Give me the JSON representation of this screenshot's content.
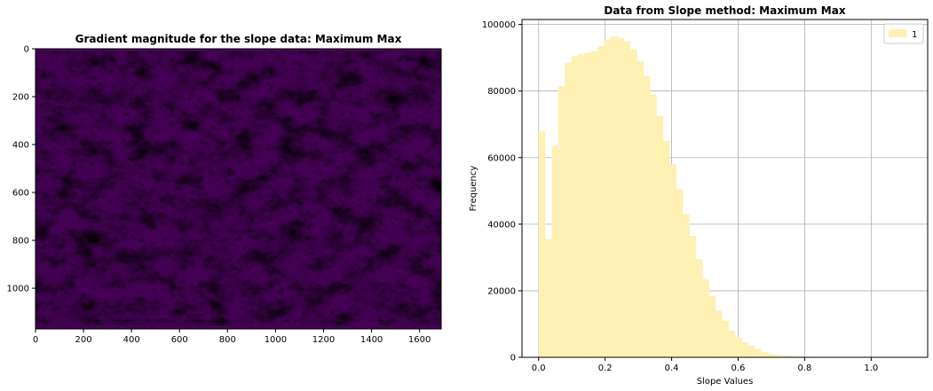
{
  "colors": {
    "hist_fill": "#fff0b3",
    "grid": "#b0b0b0",
    "axis": "#000000",
    "viridis_low": "#440154",
    "viridis_mid": "#21918c",
    "viridis_high": "#5ec962"
  },
  "chart_data": [
    {
      "type": "heatmap",
      "title": "Gradient magnitude for the slope data: Maximum Max",
      "xlabel": "",
      "ylabel": "",
      "xlim": [
        0,
        1690
      ],
      "ylim": [
        1170,
        0
      ],
      "x_ticks": [
        0,
        200,
        400,
        600,
        800,
        1000,
        1200,
        1400,
        1600
      ],
      "y_ticks": [
        0,
        200,
        400,
        600,
        800,
        1000
      ],
      "colormap": "viridis",
      "grid": false
    },
    {
      "type": "bar",
      "title": "Data from Slope method: Maximum Max",
      "xlabel": "Slope Values",
      "ylabel": "Frequency",
      "xlim": [
        -0.05,
        1.17
      ],
      "ylim": [
        0,
        101500
      ],
      "x_ticks": [
        0.0,
        0.2,
        0.4,
        0.6,
        0.8,
        1.0
      ],
      "y_ticks": [
        0,
        20000,
        40000,
        60000,
        80000,
        100000
      ],
      "grid": true,
      "legend": {
        "placement": "top-right",
        "entries": [
          "1"
        ]
      },
      "bin_width": 0.0197,
      "bin_starts": [
        0.0,
        0.0197,
        0.0394,
        0.0591,
        0.0788,
        0.0985,
        0.1182,
        0.1379,
        0.1576,
        0.1773,
        0.197,
        0.2167,
        0.2364,
        0.2561,
        0.2758,
        0.2955,
        0.3152,
        0.3349,
        0.3546,
        0.3743,
        0.394,
        0.4137,
        0.4334,
        0.4531,
        0.4728,
        0.4925,
        0.5122,
        0.5319,
        0.5516,
        0.5713,
        0.591,
        0.6107,
        0.6304,
        0.6501,
        0.6698,
        0.6895,
        0.7092,
        0.7289,
        0.7486,
        0.7683,
        0.788,
        0.8077,
        0.8274,
        0.8471,
        0.8668,
        0.8865,
        0.9062,
        0.9259,
        0.9456,
        0.9653,
        0.985,
        1.0047,
        1.0244,
        1.0441,
        1.0638,
        1.0835
      ],
      "values": [
        68000,
        35500,
        63500,
        81500,
        88500,
        90500,
        91000,
        91500,
        92000,
        93500,
        95500,
        96500,
        96000,
        95000,
        92500,
        89000,
        84500,
        79000,
        72500,
        65000,
        58000,
        50500,
        43000,
        36500,
        29500,
        23500,
        18500,
        14000,
        11000,
        8000,
        6000,
        4500,
        3500,
        2500,
        1500,
        1100,
        800,
        600,
        450,
        350,
        250,
        200,
        150,
        100,
        80,
        60,
        40,
        30,
        20,
        15,
        10,
        8,
        5,
        4,
        3,
        2
      ]
    }
  ]
}
